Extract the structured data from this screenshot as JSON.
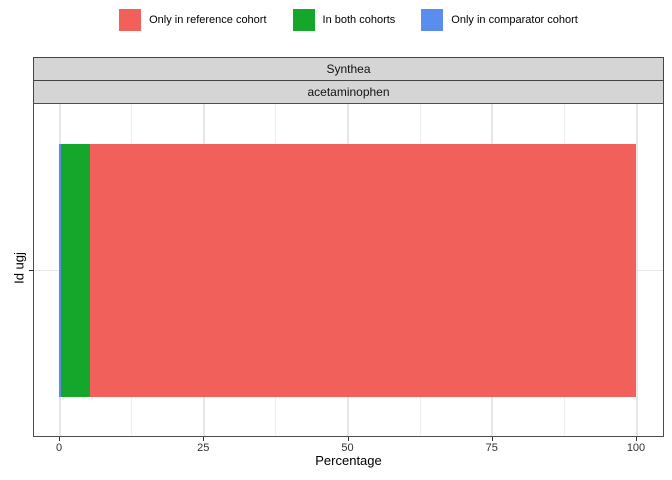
{
  "legend": {
    "items": [
      {
        "label": "Only in reference cohort",
        "color": "#F2605C"
      },
      {
        "label": "In both cohorts",
        "color": "#14A72B"
      },
      {
        "label": "Only in comparator cohort",
        "color": "#5B8DEE"
      }
    ]
  },
  "facets": {
    "database": "Synthea",
    "cohort": "acetaminophen"
  },
  "axes": {
    "x_title": "Percentage",
    "y_label": "Id ugj",
    "x_tick_labels": [
      "0",
      "25",
      "50",
      "75",
      "100"
    ]
  },
  "chart_data": {
    "type": "bar",
    "orientation": "horizontal",
    "stacked": true,
    "title": "",
    "categories": [
      "Id ugj"
    ],
    "series": [
      {
        "name": "Only in comparator cohort",
        "color": "#5B8DEE",
        "values": [
          0.3
        ]
      },
      {
        "name": "In both cohorts",
        "color": "#14A72B",
        "values": [
          5.0
        ]
      },
      {
        "name": "Only in reference cohort",
        "color": "#F2605C",
        "values": [
          94.7
        ]
      }
    ],
    "xlabel": "Percentage",
    "ylabel": "Id ugj",
    "xlim": [
      0,
      100
    ],
    "x_major_ticks": [
      0,
      25,
      50,
      75,
      100
    ],
    "x_minor_ticks": [
      12.5,
      37.5,
      62.5,
      87.5
    ],
    "facets": [
      "Synthea",
      "acetaminophen"
    ],
    "grid": true,
    "legend_position": "top"
  },
  "colors": {
    "reference_only": "#F2605C",
    "both": "#14A72B",
    "comparator_only": "#5B8DEE",
    "strip_background": "#D5D5D5",
    "panel_border": "#4D4D4D",
    "grid_major": "#E7E7E7",
    "grid_minor": "#F0F0F0"
  }
}
